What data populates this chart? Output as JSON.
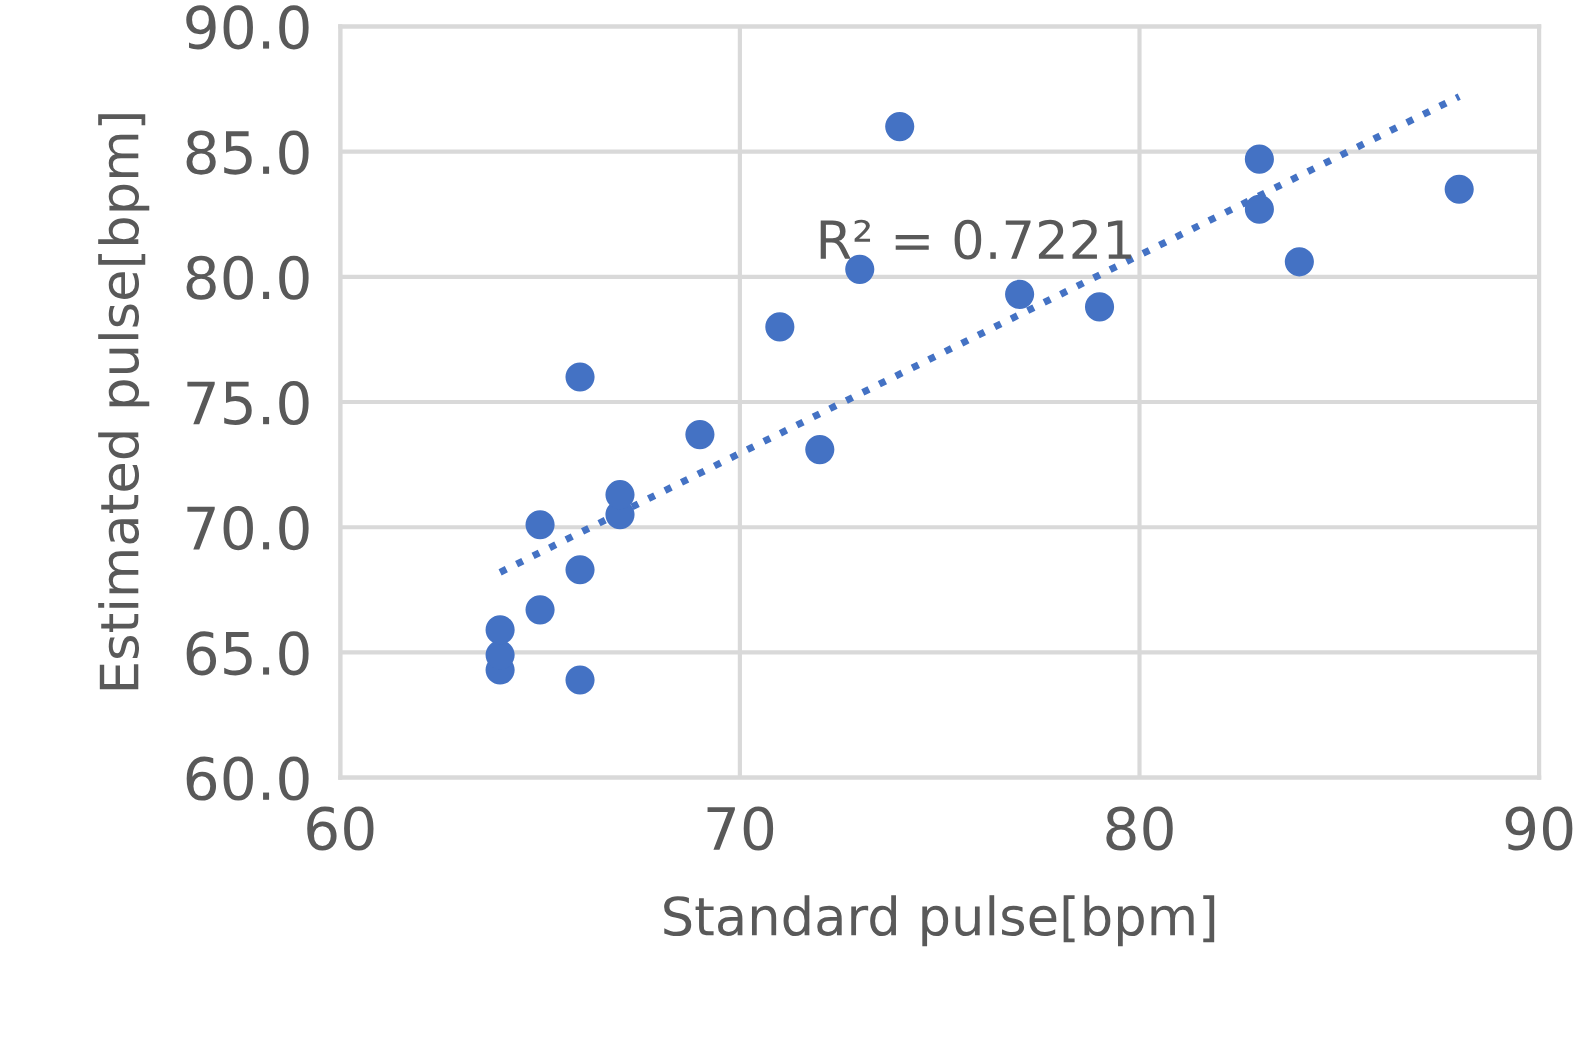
{
  "chart_data": {
    "type": "scatter",
    "xlabel": "Standard pulse[bpm]",
    "ylabel": "Estimated pulse[bpm]",
    "annotations": [
      "R² = 0.7221"
    ],
    "xlim": [
      60,
      90
    ],
    "xticks": [
      60,
      70,
      80,
      90
    ],
    "ylim": [
      60,
      90
    ],
    "yticks": [
      {
        "value": 60,
        "label": "60.0"
      },
      {
        "value": 65,
        "label": "65.0"
      },
      {
        "value": 70,
        "label": "70.0"
      },
      {
        "value": 75,
        "label": "75.0"
      },
      {
        "value": 80,
        "label": "80.0"
      },
      {
        "value": 85,
        "label": "85.0"
      },
      {
        "value": 90,
        "label": "90.0"
      }
    ],
    "grid": true,
    "legend": false,
    "marker": "circle",
    "series": [
      {
        "color": "#4472c4",
        "x": [
          64,
          64,
          64,
          66,
          65,
          66,
          65,
          67,
          67,
          69,
          72,
          66,
          71,
          73,
          74,
          77,
          79,
          83,
          83,
          84,
          88
        ],
        "values": [
          64.3,
          64.9,
          65.9,
          63.9,
          66.7,
          68.3,
          70.1,
          70.5,
          71.3,
          73.7,
          73.1,
          76.0,
          78.0,
          80.3,
          86.0,
          79.3,
          78.8,
          84.7,
          82.7,
          80.6,
          83.5
        ]
      },
      {
        "type": "line",
        "color": "#4472c4",
        "line_style": "dotted",
        "marker": "none",
        "x": [
          64,
          88
        ],
        "values": [
          68.2,
          87.2
        ]
      }
    ]
  }
}
